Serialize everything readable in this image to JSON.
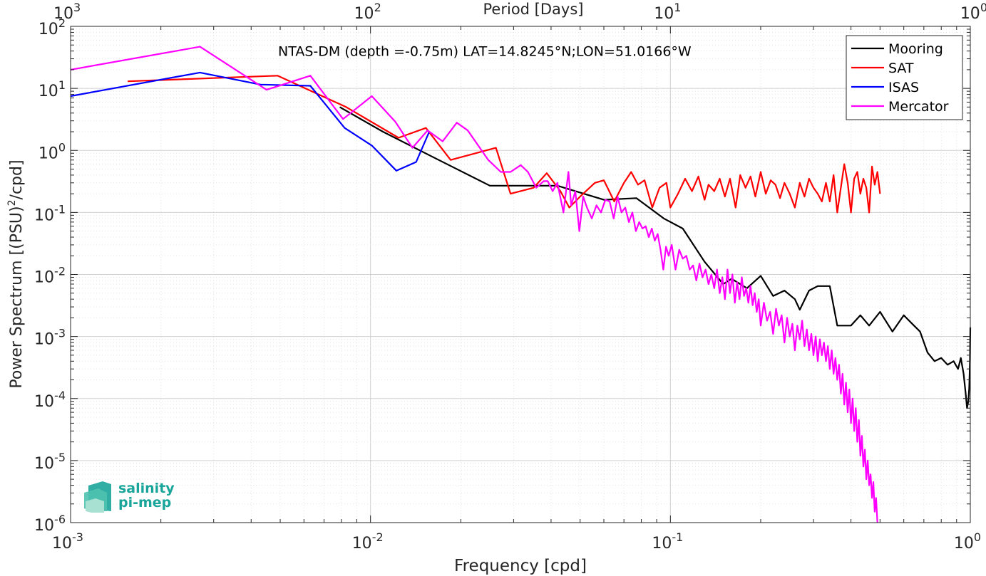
{
  "chart_data": {
    "type": "line",
    "title": "NTAS-DM (depth =-0.75m) LAT=14.8245°N;LON=51.0166°W",
    "xlabel": "Frequency [cpd]",
    "ylabel_main": "Power Spectrum [(PSU)",
    "ylabel_sup": "2",
    "ylabel_tail": "/cpd]",
    "top_xlabel": "Period [Days]",
    "x_scale": "log",
    "y_scale": "log",
    "xlim": [
      0.001,
      1
    ],
    "ylim": [
      1e-06,
      100
    ],
    "grid": true,
    "legend_position": "top-right",
    "x_ticks": [
      {
        "b": "10",
        "e": "-3"
      },
      {
        "b": "10",
        "e": "-2"
      },
      {
        "b": "10",
        "e": "-1"
      },
      {
        "b": "10",
        "e": "0"
      }
    ],
    "top_ticks": [
      {
        "b": "10",
        "e": "3"
      },
      {
        "b": "10",
        "e": "2"
      },
      {
        "b": "10",
        "e": "1"
      },
      {
        "b": "10",
        "e": "0"
      }
    ],
    "y_ticks": [
      {
        "b": "10",
        "e": "-6"
      },
      {
        "b": "10",
        "e": "-5"
      },
      {
        "b": "10",
        "e": "-4"
      },
      {
        "b": "10",
        "e": "-3"
      },
      {
        "b": "10",
        "e": "-2"
      },
      {
        "b": "10",
        "e": "-1"
      },
      {
        "b": "10",
        "e": "0"
      },
      {
        "b": "10",
        "e": "1"
      },
      {
        "b": "10",
        "e": "2"
      }
    ],
    "series": [
      {
        "name": "Mooring",
        "color": "#000000",
        "points": [
          [
            0.0079,
            5.0
          ],
          [
            0.011,
            2.0
          ],
          [
            0.016,
            0.8
          ],
          [
            0.025,
            0.27
          ],
          [
            0.042,
            0.27
          ],
          [
            0.06,
            0.16
          ],
          [
            0.077,
            0.17
          ],
          [
            0.095,
            0.08
          ],
          [
            0.11,
            0.055
          ],
          [
            0.13,
            0.016
          ],
          [
            0.15,
            0.007
          ],
          [
            0.16,
            0.0085
          ],
          [
            0.18,
            0.006
          ],
          [
            0.2,
            0.0095
          ],
          [
            0.22,
            0.0045
          ],
          [
            0.24,
            0.0055
          ],
          [
            0.26,
            0.004
          ],
          [
            0.27,
            0.0027
          ],
          [
            0.29,
            0.0055
          ],
          [
            0.31,
            0.0065
          ],
          [
            0.34,
            0.0065
          ],
          [
            0.36,
            0.0015
          ],
          [
            0.4,
            0.0015
          ],
          [
            0.43,
            0.0022
          ],
          [
            0.46,
            0.0015
          ],
          [
            0.5,
            0.0025
          ],
          [
            0.55,
            0.0012
          ],
          [
            0.6,
            0.0022
          ],
          [
            0.64,
            0.0016
          ],
          [
            0.68,
            0.0012
          ],
          [
            0.72,
            0.00055
          ],
          [
            0.76,
            0.0004
          ],
          [
            0.8,
            0.00045
          ],
          [
            0.84,
            0.00035
          ],
          [
            0.88,
            0.0004
          ],
          [
            0.91,
            0.0003
          ],
          [
            0.93,
            0.00045
          ],
          [
            0.95,
            0.00025
          ],
          [
            0.965,
            0.00012
          ],
          [
            0.975,
            7e-05
          ],
          [
            0.985,
            9e-05
          ],
          [
            0.992,
            0.00015
          ],
          [
            0.997,
            0.0004
          ],
          [
            1.0,
            0.0014
          ]
        ]
      },
      {
        "name": "SAT",
        "color": "#ff0000",
        "points": [
          [
            0.00155,
            13
          ],
          [
            0.0049,
            16
          ],
          [
            0.0083,
            5
          ],
          [
            0.0124,
            1.6
          ],
          [
            0.0153,
            2.3
          ],
          [
            0.0185,
            0.7
          ],
          [
            0.0262,
            1.1
          ],
          [
            0.0293,
            0.2
          ],
          [
            0.035,
            0.25
          ],
          [
            0.0387,
            0.43
          ],
          [
            0.043,
            0.22
          ],
          [
            0.046,
            0.12
          ],
          [
            0.05,
            0.18
          ],
          [
            0.056,
            0.3
          ],
          [
            0.06,
            0.33
          ],
          [
            0.065,
            0.15
          ],
          [
            0.07,
            0.3
          ],
          [
            0.074,
            0.45
          ],
          [
            0.078,
            0.28
          ],
          [
            0.082,
            0.33
          ],
          [
            0.087,
            0.12
          ],
          [
            0.092,
            0.25
          ],
          [
            0.097,
            0.3
          ],
          [
            0.1,
            0.12
          ],
          [
            0.106,
            0.2
          ],
          [
            0.112,
            0.35
          ],
          [
            0.118,
            0.22
          ],
          [
            0.124,
            0.38
          ],
          [
            0.13,
            0.16
          ],
          [
            0.134,
            0.28
          ],
          [
            0.14,
            0.22
          ],
          [
            0.146,
            0.35
          ],
          [
            0.152,
            0.18
          ],
          [
            0.158,
            0.35
          ],
          [
            0.165,
            0.12
          ],
          [
            0.171,
            0.4
          ],
          [
            0.178,
            0.25
          ],
          [
            0.185,
            0.38
          ],
          [
            0.192,
            0.18
          ],
          [
            0.2,
            0.45
          ],
          [
            0.208,
            0.2
          ],
          [
            0.216,
            0.33
          ],
          [
            0.224,
            0.28
          ],
          [
            0.232,
            0.17
          ],
          [
            0.24,
            0.3
          ],
          [
            0.25,
            0.2
          ],
          [
            0.26,
            0.12
          ],
          [
            0.27,
            0.3
          ],
          [
            0.28,
            0.18
          ],
          [
            0.29,
            0.35
          ],
          [
            0.3,
            0.25
          ],
          [
            0.31,
            0.2
          ],
          [
            0.32,
            0.15
          ],
          [
            0.33,
            0.3
          ],
          [
            0.34,
            0.15
          ],
          [
            0.35,
            0.4
          ],
          [
            0.36,
            0.1
          ],
          [
            0.37,
            0.25
          ],
          [
            0.38,
            0.6
          ],
          [
            0.39,
            0.3
          ],
          [
            0.4,
            0.1
          ],
          [
            0.41,
            0.35
          ],
          [
            0.42,
            0.45
          ],
          [
            0.43,
            0.2
          ],
          [
            0.44,
            0.35
          ],
          [
            0.45,
            0.25
          ],
          [
            0.46,
            0.1
          ],
          [
            0.47,
            0.55
          ],
          [
            0.48,
            0.28
          ],
          [
            0.49,
            0.45
          ],
          [
            0.5,
            0.2
          ]
        ]
      },
      {
        "name": "ISAS",
        "color": "#0000ff",
        "points": [
          [
            0.001,
            7.5
          ],
          [
            0.0027,
            18
          ],
          [
            0.0043,
            11.5
          ],
          [
            0.0063,
            11
          ],
          [
            0.0082,
            2.3
          ],
          [
            0.0101,
            1.2
          ],
          [
            0.0122,
            0.47
          ],
          [
            0.0142,
            0.65
          ],
          [
            0.0157,
            2.0
          ]
        ]
      },
      {
        "name": "Mercator",
        "color": "#ff00ff",
        "points": [
          [
            0.001,
            20
          ],
          [
            0.0027,
            47
          ],
          [
            0.0045,
            9.5
          ],
          [
            0.0063,
            16
          ],
          [
            0.0081,
            3.2
          ],
          [
            0.0101,
            7.5
          ],
          [
            0.0121,
            2.9
          ],
          [
            0.0138,
            1.1
          ],
          [
            0.0155,
            2.1
          ],
          [
            0.0174,
            1.4
          ],
          [
            0.0194,
            2.8
          ],
          [
            0.0211,
            2.1
          ],
          [
            0.0247,
            0.7
          ],
          [
            0.0272,
            0.45
          ],
          [
            0.0293,
            0.45
          ],
          [
            0.0317,
            0.58
          ],
          [
            0.0335,
            0.45
          ],
          [
            0.0357,
            0.25
          ],
          [
            0.0378,
            0.32
          ],
          [
            0.039,
            0.32
          ],
          [
            0.0405,
            0.22
          ],
          [
            0.042,
            0.3
          ],
          [
            0.044,
            0.1
          ],
          [
            0.0457,
            0.45
          ],
          [
            0.0467,
            0.13
          ],
          [
            0.0482,
            0.22
          ],
          [
            0.0497,
            0.05
          ],
          [
            0.0512,
            0.18
          ],
          [
            0.0527,
            0.12
          ],
          [
            0.0547,
            0.08
          ],
          [
            0.0567,
            0.13
          ],
          [
            0.0587,
            0.1
          ],
          [
            0.0607,
            0.16
          ],
          [
            0.0627,
            0.15
          ],
          [
            0.0647,
            0.08
          ],
          [
            0.0667,
            0.18
          ],
          [
            0.0687,
            0.1
          ],
          [
            0.0707,
            0.12
          ],
          [
            0.0727,
            0.07
          ],
          [
            0.0747,
            0.1
          ],
          [
            0.0767,
            0.05
          ],
          [
            0.0787,
            0.07
          ],
          [
            0.0807,
            0.055
          ],
          [
            0.0827,
            0.06
          ],
          [
            0.0847,
            0.04
          ],
          [
            0.0867,
            0.055
          ],
          [
            0.0887,
            0.035
          ],
          [
            0.0907,
            0.045
          ],
          [
            0.0927,
            0.025
          ],
          [
            0.0947,
            0.012
          ],
          [
            0.0967,
            0.028
          ],
          [
            0.0987,
            0.02
          ],
          [
            0.101,
            0.03
          ],
          [
            0.104,
            0.012
          ],
          [
            0.107,
            0.025
          ],
          [
            0.11,
            0.018
          ],
          [
            0.113,
            0.02
          ],
          [
            0.116,
            0.012
          ],
          [
            0.119,
            0.014
          ],
          [
            0.122,
            0.008
          ],
          [
            0.125,
            0.015
          ],
          [
            0.128,
            0.009
          ],
          [
            0.131,
            0.012
          ],
          [
            0.134,
            0.007
          ],
          [
            0.137,
            0.01
          ],
          [
            0.14,
            0.006
          ],
          [
            0.143,
            0.012
          ],
          [
            0.146,
            0.005
          ],
          [
            0.149,
            0.009
          ],
          [
            0.152,
            0.004
          ],
          [
            0.155,
            0.012
          ],
          [
            0.158,
            0.005
          ],
          [
            0.161,
            0.01
          ],
          [
            0.164,
            0.0035
          ],
          [
            0.167,
            0.0075
          ],
          [
            0.17,
            0.004
          ],
          [
            0.173,
            0.009
          ],
          [
            0.176,
            0.0045
          ],
          [
            0.179,
            0.006
          ],
          [
            0.182,
            0.0035
          ],
          [
            0.185,
            0.0065
          ],
          [
            0.188,
            0.0032
          ],
          [
            0.191,
            0.005
          ],
          [
            0.194,
            0.0025
          ],
          [
            0.197,
            0.004
          ],
          [
            0.2,
            0.0015
          ],
          [
            0.205,
            0.0035
          ],
          [
            0.21,
            0.0018
          ],
          [
            0.215,
            0.0025
          ],
          [
            0.22,
            0.0011
          ],
          [
            0.225,
            0.0028
          ],
          [
            0.23,
            0.0015
          ],
          [
            0.235,
            0.0022
          ],
          [
            0.24,
            0.0008
          ],
          [
            0.245,
            0.002
          ],
          [
            0.25,
            0.001
          ],
          [
            0.255,
            0.0016
          ],
          [
            0.26,
            0.0006
          ],
          [
            0.265,
            0.0015
          ],
          [
            0.27,
            0.0009
          ],
          [
            0.275,
            0.0018
          ],
          [
            0.28,
            0.0007
          ],
          [
            0.285,
            0.0013
          ],
          [
            0.29,
            0.0006
          ],
          [
            0.295,
            0.0011
          ],
          [
            0.3,
            0.0005
          ],
          [
            0.305,
            0.001
          ],
          [
            0.31,
            0.0004
          ],
          [
            0.315,
            0.0009
          ],
          [
            0.32,
            0.0005
          ],
          [
            0.325,
            0.0008
          ],
          [
            0.33,
            0.0004
          ],
          [
            0.335,
            0.0007
          ],
          [
            0.34,
            0.0003
          ],
          [
            0.345,
            0.0006
          ],
          [
            0.35,
            0.00025
          ],
          [
            0.355,
            0.00045
          ],
          [
            0.36,
            0.0002
          ],
          [
            0.365,
            0.00035
          ],
          [
            0.37,
            0.00012
          ],
          [
            0.375,
            0.00025
          ],
          [
            0.38,
            8e-05
          ],
          [
            0.385,
            0.00018
          ],
          [
            0.39,
            6e-05
          ],
          [
            0.395,
            0.00014
          ],
          [
            0.4,
            4e-05
          ],
          [
            0.405,
            0.0001
          ],
          [
            0.41,
            3e-05
          ],
          [
            0.415,
            7e-05
          ],
          [
            0.42,
            2e-05
          ],
          [
            0.425,
            4.5e-05
          ],
          [
            0.43,
            1.2e-05
          ],
          [
            0.435,
            2.5e-05
          ],
          [
            0.44,
            8e-06
          ],
          [
            0.445,
            1.5e-05
          ],
          [
            0.45,
            5e-06
          ],
          [
            0.455,
            1e-05
          ],
          [
            0.46,
            4e-06
          ],
          [
            0.465,
            6e-06
          ],
          [
            0.47,
            2.5e-06
          ],
          [
            0.475,
            4.5e-06
          ],
          [
            0.48,
            1.5e-06
          ],
          [
            0.485,
            2.5e-06
          ],
          [
            0.49,
            1e-06
          ]
        ]
      }
    ]
  },
  "logo": {
    "line1": "salinity",
    "line2": "pi-mep"
  }
}
